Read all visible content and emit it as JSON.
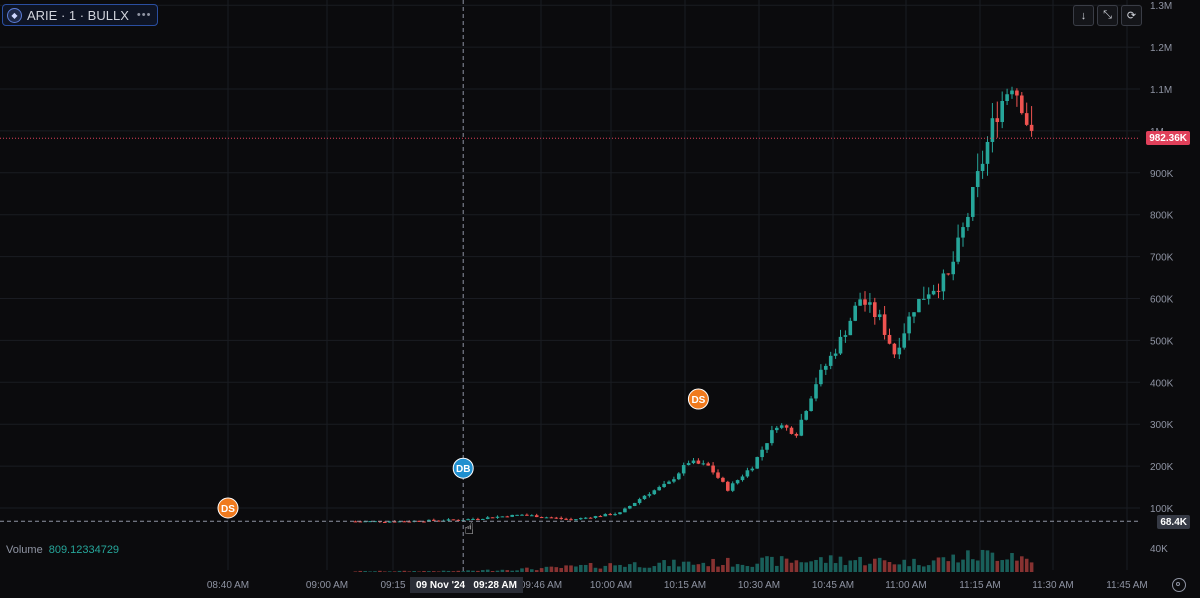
{
  "symbol": {
    "label": "ARIE · 1 · BULLX",
    "more": "•••",
    "logo": "◆"
  },
  "toolbar": {
    "download": "↓",
    "fullscreen": "⤡",
    "reset": "⟳"
  },
  "volume_legend": {
    "label": "Volume",
    "value": "809.12334729"
  },
  "price_axis_labels": [
    "1.3M",
    "1.2M",
    "1.1M",
    "1M",
    "900K",
    "800K",
    "700K",
    "600K",
    "500K",
    "400K",
    "300K",
    "200K",
    "100K",
    "40K"
  ],
  "current_price": {
    "label": "982.36K",
    "color": "#e0405a"
  },
  "crosshair_price": {
    "label": "68.4K"
  },
  "time_axis_labels": [
    "08:40 AM",
    "09:00 AM",
    "09:15",
    "09:46 AM",
    "10:00 AM",
    "10:15 AM",
    "10:30 AM",
    "10:45 AM",
    "11:00 AM",
    "11:15 AM",
    "11:30 AM",
    "11:45 AM"
  ],
  "crosshair_time": {
    "label": "09 Nov '24   09:28 AM"
  },
  "markers": [
    {
      "label": "DS",
      "color": "#f07a1e",
      "t": "08:40",
      "price": 100000
    },
    {
      "label": "DB",
      "color": "#1f8fcf",
      "t": "09:28",
      "price": 195000
    },
    {
      "label": "DS",
      "color": "#f07a1e",
      "t": "10:16",
      "price": 360000
    }
  ],
  "colors": {
    "up": "#26a69a",
    "down": "#ef5350",
    "grid": "#1a1c22",
    "background": "#0b0b0d"
  },
  "chart_data": {
    "type": "candlestick",
    "x_unit": "time",
    "y_unit": "market cap",
    "ylim": [
      0,
      1300000
    ],
    "price_levels": {
      "current": 982360,
      "crosshair": 68400
    },
    "time_ticks": [
      "08:40",
      "09:00",
      "09:15",
      "09:46",
      "10:00",
      "10:15",
      "10:30",
      "10:45",
      "11:00",
      "11:15",
      "11:30",
      "11:45"
    ],
    "keypoints": [
      [
        "09:06",
        68000
      ],
      [
        "09:15",
        68000
      ],
      [
        "09:28",
        72000
      ],
      [
        "09:40",
        84000
      ],
      [
        "09:50",
        72000
      ],
      [
        "10:00",
        88000
      ],
      [
        "10:05",
        130000
      ],
      [
        "10:10",
        160000
      ],
      [
        "10:14",
        210000
      ],
      [
        "10:18",
        200000
      ],
      [
        "10:22",
        145000
      ],
      [
        "10:27",
        200000
      ],
      [
        "10:32",
        300000
      ],
      [
        "10:36",
        280000
      ],
      [
        "10:40",
        400000
      ],
      [
        "10:45",
        500000
      ],
      [
        "10:49",
        600000
      ],
      [
        "10:53",
        550000
      ],
      [
        "10:56",
        470000
      ],
      [
        "11:00",
        580000
      ],
      [
        "11:03",
        620000
      ],
      [
        "11:07",
        650000
      ],
      [
        "11:11",
        800000
      ],
      [
        "11:14",
        930000
      ],
      [
        "11:17",
        1050000
      ],
      [
        "11:20",
        1120000
      ],
      [
        "11:22",
        1070000
      ],
      [
        "11:24",
        980000
      ]
    ],
    "volume_profile": [
      [
        "08:42",
        0.02
      ],
      [
        "09:06",
        0.04
      ],
      [
        "09:28",
        0.05
      ],
      [
        "09:46",
        0.2
      ],
      [
        "10:00",
        0.4
      ],
      [
        "10:15",
        0.45
      ],
      [
        "10:30",
        0.55
      ],
      [
        "10:45",
        0.65
      ],
      [
        "11:00",
        0.5
      ],
      [
        "11:15",
        0.9
      ],
      [
        "11:20",
        1.0
      ],
      [
        "11:24",
        0.5
      ]
    ]
  }
}
